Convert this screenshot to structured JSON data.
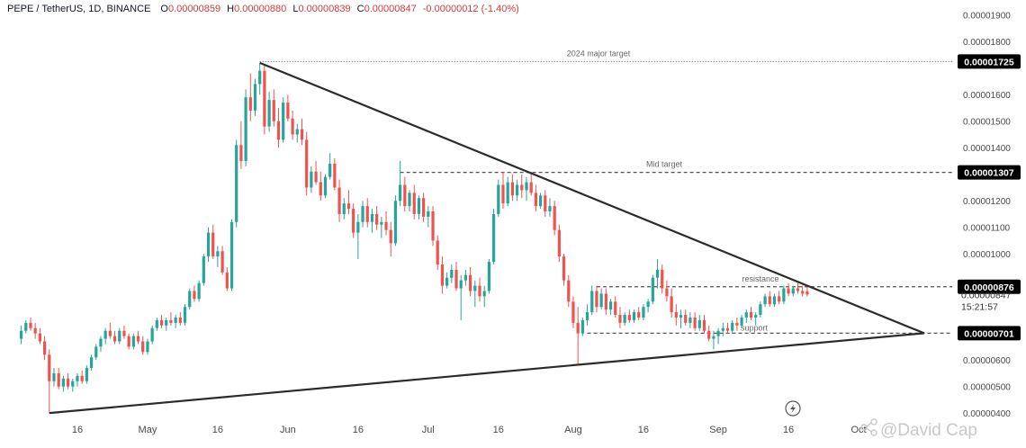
{
  "header": {
    "symbol": "PEPE / TetherUS, 1D, BINANCE",
    "open_label": "O",
    "open": "0.00000859",
    "high_label": "H",
    "high": "0.00000880",
    "low_label": "L",
    "low": "0.00000839",
    "close_label": "C",
    "close": "0.00000847",
    "change": "-0.00000012 (-1.40%)"
  },
  "watermark": "@David Cap",
  "watermark_icon": "social-share-icon",
  "indicator_icon": "lightning-bolt-icon",
  "colors": {
    "up": "#26a69a",
    "down": "#ef5350",
    "line": "#2b2b2b",
    "dashed": "#555555",
    "tag_bg": "#000000"
  },
  "chart_data": {
    "type": "candlestick",
    "title": "PEPE / TetherUS, 1D, BINANCE",
    "ylim": [
      3.7e-06,
      1.95e-05
    ],
    "xlim_index": [
      -3,
      199
    ],
    "y_ticks": [
      {
        "value": 4e-06,
        "label": "0.00000400"
      },
      {
        "value": 5e-06,
        "label": "0.00000500"
      },
      {
        "value": 6e-06,
        "label": "0.00000600"
      },
      {
        "value": 1e-05,
        "label": "0.00001000"
      },
      {
        "value": 1.1e-05,
        "label": "0.00001100"
      },
      {
        "value": 1.2e-05,
        "label": "0.00001200"
      },
      {
        "value": 1.4e-05,
        "label": "0.00001400"
      },
      {
        "value": 1.5e-05,
        "label": "0.00001500"
      },
      {
        "value": 1.6e-05,
        "label": "0.00001600"
      },
      {
        "value": 1.8e-05,
        "label": "0.00001800"
      },
      {
        "value": 1.9e-05,
        "label": "0.00001900"
      }
    ],
    "x_ticks": [
      {
        "index": 12,
        "label": "16"
      },
      {
        "index": 27,
        "label": "May"
      },
      {
        "index": 42,
        "label": "16"
      },
      {
        "index": 57,
        "label": "Jun"
      },
      {
        "index": 72,
        "label": "16"
      },
      {
        "index": 87,
        "label": "Jul"
      },
      {
        "index": 102,
        "label": "16"
      },
      {
        "index": 118,
        "label": "Aug"
      },
      {
        "index": 133,
        "label": "16"
      },
      {
        "index": 149,
        "label": "Sep"
      },
      {
        "index": 164,
        "label": "16"
      },
      {
        "index": 179,
        "label": "Oct"
      }
    ],
    "price_tags": [
      {
        "value": 1.725e-05,
        "label": "0.00001725"
      },
      {
        "value": 1.307e-05,
        "label": "0.00001307"
      },
      {
        "value": 8.76e-06,
        "label": "0.00000876"
      },
      {
        "value": 7.01e-06,
        "label": "0.00000701"
      }
    ],
    "current_price": {
      "value": 8.47e-06,
      "label": "0.00000847",
      "countdown": "15:21:57"
    },
    "horizontal_levels": [
      {
        "value": 1.725e-05,
        "from_index": 51,
        "to_index": 199,
        "style": "dotted",
        "label": "2024 major target"
      },
      {
        "value": 1.307e-05,
        "from_index": 81,
        "to_index": 199,
        "style": "dashed",
        "label": "Mid target"
      },
      {
        "value": 8.76e-06,
        "from_index": 123,
        "to_index": 199,
        "style": "dashed",
        "label": "resistance"
      },
      {
        "value": 7.01e-06,
        "from_index": 121,
        "to_index": 199,
        "style": "dashed",
        "label": "support"
      }
    ],
    "trendlines": [
      {
        "from": [
          51,
          1.72e-05
        ],
        "to": [
          193,
          7.01e-06
        ]
      },
      {
        "from": [
          6,
          4e-06
        ],
        "to": [
          193,
          7.01e-06
        ]
      }
    ],
    "ohlc": [
      [
        6.8e-06,
        7.3e-06,
        6.6e-06,
        7.1e-06
      ],
      [
        7.1e-06,
        7.5e-06,
        7e-06,
        7.4e-06
      ],
      [
        7.4e-06,
        7.6e-06,
        7.1e-06,
        7.2e-06
      ],
      [
        7.2e-06,
        7.4e-06,
        6.8e-06,
        7e-06
      ],
      [
        7e-06,
        7.2e-06,
        6.6e-06,
        6.7e-06
      ],
      [
        6.7e-06,
        6.9e-06,
        6e-06,
        6.2e-06
      ],
      [
        6.2e-06,
        6.4e-06,
        4e-06,
        5.2e-06
      ],
      [
        5.2e-06,
        5.7e-06,
        5e-06,
        5.5e-06
      ],
      [
        5.5e-06,
        5.7e-06,
        4.9e-06,
        5e-06
      ],
      [
        5e-06,
        5.4e-06,
        4.8e-06,
        5.3e-06
      ],
      [
        5.3e-06,
        5.5e-06,
        4.9e-06,
        5e-06
      ],
      [
        5e-06,
        5.3e-06,
        4.8e-06,
        5.2e-06
      ],
      [
        5.2e-06,
        5.5e-06,
        5e-06,
        5.4e-06
      ],
      [
        5.4e-06,
        5.6e-06,
        5.1e-06,
        5.2e-06
      ],
      [
        5.2e-06,
        5.8e-06,
        5.1e-06,
        5.7e-06
      ],
      [
        5.7e-06,
        6.2e-06,
        5.6e-06,
        6.1e-06
      ],
      [
        6.1e-06,
        6.6e-06,
        6e-06,
        6.5e-06
      ],
      [
        6.5e-06,
        6.9e-06,
        6.3e-06,
        6.8e-06
      ],
      [
        6.8e-06,
        7.2e-06,
        6.6e-06,
        7.1e-06
      ],
      [
        7.1e-06,
        7.4e-06,
        6.8e-06,
        6.9e-06
      ],
      [
        6.9e-06,
        7.1e-06,
        6.6e-06,
        6.7e-06
      ],
      [
        6.7e-06,
        7.2e-06,
        6.6e-06,
        7.1e-06
      ],
      [
        7.1e-06,
        7.3e-06,
        6.8e-06,
        6.9e-06
      ],
      [
        6.9e-06,
        7e-06,
        6.4e-06,
        6.5e-06
      ],
      [
        6.5e-06,
        7e-06,
        6.4e-06,
        6.9e-06
      ],
      [
        6.9e-06,
        7.1e-06,
        6.6e-06,
        6.7e-06
      ],
      [
        6.7e-06,
        6.9e-06,
        6.2e-06,
        6.3e-06
      ],
      [
        6.3e-06,
        6.8e-06,
        6.2e-06,
        6.7e-06
      ],
      [
        6.7e-06,
        7.3e-06,
        6.6e-06,
        7.2e-06
      ],
      [
        7.2e-06,
        7.6e-06,
        7.1e-06,
        7.5e-06
      ],
      [
        7.5e-06,
        7.7e-06,
        7.2e-06,
        7.3e-06
      ],
      [
        7.3e-06,
        7.6e-06,
        7.1e-06,
        7.5e-06
      ],
      [
        7.5e-06,
        7.8e-06,
        7.3e-06,
        7.4e-06
      ],
      [
        7.4e-06,
        7.7e-06,
        7.2e-06,
        7.6e-06
      ],
      [
        7.6e-06,
        7.8e-06,
        7.3e-06,
        7.4e-06
      ],
      [
        7.4e-06,
        8.1e-06,
        7.3e-06,
        8e-06
      ],
      [
        8e-06,
        8.7e-06,
        7.9e-06,
        8.6e-06
      ],
      [
        8.6e-06,
        8.8e-06,
        8.2e-06,
        8.3e-06
      ],
      [
        8.3e-06,
        9e-06,
        8.2e-06,
        8.9e-06
      ],
      [
        8.9e-06,
        1e-05,
        8.8e-06,
        9.9e-06
      ],
      [
        9.9e-06,
        1.1e-05,
        9.7e-06,
        1.08e-05
      ],
      [
        1.08e-05,
        1.11e-05,
        9.8e-06,
        9.9e-06
      ],
      [
        9.9e-06,
        1.03e-05,
        9.5e-06,
        1.01e-05
      ],
      [
        1.01e-05,
        1.03e-05,
        9.2e-06,
        9.3e-06
      ],
      [
        9.3e-06,
        9.5e-06,
        8.6e-06,
        8.7e-06
      ],
      [
        8.7e-06,
        1.13e-05,
        8.6e-06,
        1.12e-05
      ],
      [
        1.12e-05,
        1.43e-05,
        1.1e-05,
        1.41e-05
      ],
      [
        1.41e-05,
        1.5e-05,
        1.32e-05,
        1.35e-05
      ],
      [
        1.35e-05,
        1.62e-05,
        1.33e-05,
        1.59e-05
      ],
      [
        1.59e-05,
        1.68e-05,
        1.5e-05,
        1.54e-05
      ],
      [
        1.54e-05,
        1.66e-05,
        1.52e-05,
        1.64e-05
      ],
      [
        1.64e-05,
        1.72e-05,
        1.6e-05,
        1.69e-05
      ],
      [
        1.69e-05,
        1.71e-05,
        1.45e-05,
        1.48e-05
      ],
      [
        1.48e-05,
        1.61e-05,
        1.46e-05,
        1.58e-05
      ],
      [
        1.58e-05,
        1.62e-05,
        1.48e-05,
        1.5e-05
      ],
      [
        1.5e-05,
        1.55e-05,
        1.4e-05,
        1.43e-05
      ],
      [
        1.43e-05,
        1.59e-05,
        1.42e-05,
        1.57e-05
      ],
      [
        1.57e-05,
        1.6e-05,
        1.5e-05,
        1.51e-05
      ],
      [
        1.51e-05,
        1.54e-05,
        1.43e-05,
        1.45e-05
      ],
      [
        1.45e-05,
        1.49e-05,
        1.42e-05,
        1.47e-05
      ],
      [
        1.47e-05,
        1.51e-05,
        1.41e-05,
        1.43e-05
      ],
      [
        1.43e-05,
        1.46e-05,
        1.22e-05,
        1.25e-05
      ],
      [
        1.25e-05,
        1.33e-05,
        1.23e-05,
        1.31e-05
      ],
      [
        1.31e-05,
        1.35e-05,
        1.26e-05,
        1.27e-05
      ],
      [
        1.27e-05,
        1.31e-05,
        1.2e-05,
        1.22e-05
      ],
      [
        1.22e-05,
        1.3e-05,
        1.21e-05,
        1.29e-05
      ],
      [
        1.29e-05,
        1.38e-05,
        1.28e-05,
        1.34e-05
      ],
      [
        1.34e-05,
        1.36e-05,
        1.24e-05,
        1.25e-05
      ],
      [
        1.25e-05,
        1.28e-05,
        1.12e-05,
        1.15e-05
      ],
      [
        1.15e-05,
        1.21e-05,
        1.13e-05,
        1.19e-05
      ],
      [
        1.19e-05,
        1.24e-05,
        1.15e-05,
        1.17e-05
      ],
      [
        1.17e-05,
        1.19e-05,
        1.06e-05,
        1.08e-05
      ],
      [
        1.08e-05,
        1.15e-05,
        9.8e-06,
        1.12e-05
      ],
      [
        1.12e-05,
        1.2e-05,
        1.1e-05,
        1.18e-05
      ],
      [
        1.18e-05,
        1.21e-05,
        1.1e-05,
        1.12e-05
      ],
      [
        1.12e-05,
        1.17e-05,
        1.08e-05,
        1.15e-05
      ],
      [
        1.15e-05,
        1.18e-05,
        1.09e-05,
        1.11e-05
      ],
      [
        1.11e-05,
        1.14e-05,
        1.06e-05,
        1.12e-05
      ],
      [
        1.12e-05,
        1.16e-05,
        1.07e-05,
        1.09e-05
      ],
      [
        1.09e-05,
        1.12e-05,
        9.9e-06,
        1.04e-05
      ],
      [
        1.04e-05,
        1.22e-05,
        1.03e-05,
        1.2e-05
      ],
      [
        1.2e-05,
        1.35e-05,
        1.18e-05,
        1.26e-05
      ],
      [
        1.26e-05,
        1.29e-05,
        1.16e-05,
        1.18e-05
      ],
      [
        1.18e-05,
        1.24e-05,
        1.16e-05,
        1.23e-05
      ],
      [
        1.23e-05,
        1.26e-05,
        1.13e-05,
        1.15e-05
      ],
      [
        1.15e-05,
        1.22e-05,
        1.13e-05,
        1.21e-05
      ],
      [
        1.21e-05,
        1.23e-05,
        1.12e-05,
        1.14e-05
      ],
      [
        1.14e-05,
        1.18e-05,
        1.1e-05,
        1.16e-05
      ],
      [
        1.16e-05,
        1.18e-05,
        1.03e-05,
        1.05e-05
      ],
      [
        1.05e-05,
        1.07e-05,
        9.4e-06,
        9.6e-06
      ],
      [
        9.6e-06,
        9.9e-06,
        8.5e-06,
        8.8e-06
      ],
      [
        8.8e-06,
        9.3e-06,
        8.7e-06,
        9.1e-06
      ],
      [
        9.1e-06,
        9.6e-06,
        8.9e-06,
        9.4e-06
      ],
      [
        9.4e-06,
        9.7e-06,
        8.6e-06,
        8.7e-06
      ],
      [
        8.7e-06,
        9.2e-06,
        7.5e-06,
        9e-06
      ],
      [
        9e-06,
        9.4e-06,
        8.8e-06,
        9.2e-06
      ],
      [
        9.2e-06,
        9.5e-06,
        8.4e-06,
        8.6e-06
      ],
      [
        8.6e-06,
        9e-06,
        8e-06,
        8.8e-06
      ],
      [
        8.8e-06,
        9.1e-06,
        8.2e-06,
        8.4e-06
      ],
      [
        8.4e-06,
        8.8e-06,
        8e-06,
        8.6e-06
      ],
      [
        8.6e-06,
        9.8e-06,
        8.5e-06,
        9.7e-06
      ],
      [
        9.7e-06,
        1.17e-05,
        9.6e-06,
        1.15e-05
      ],
      [
        1.15e-05,
        1.28e-05,
        1.14e-05,
        1.26e-05
      ],
      [
        1.26e-05,
        1.31e-05,
        1.17e-05,
        1.19e-05
      ],
      [
        1.19e-05,
        1.29e-05,
        1.18e-05,
        1.27e-05
      ],
      [
        1.27e-05,
        1.3e-05,
        1.2e-05,
        1.22e-05
      ],
      [
        1.22e-05,
        1.28e-05,
        1.2e-05,
        1.26e-05
      ],
      [
        1.26e-05,
        1.3e-05,
        1.21e-05,
        1.24e-05
      ],
      [
        1.24e-05,
        1.29e-05,
        1.2e-05,
        1.27e-05
      ],
      [
        1.27e-05,
        1.31e-05,
        1.22e-05,
        1.23e-05
      ],
      [
        1.23e-05,
        1.26e-05,
        1.16e-05,
        1.18e-05
      ],
      [
        1.18e-05,
        1.23e-05,
        1.17e-05,
        1.22e-05
      ],
      [
        1.22e-05,
        1.24e-05,
        1.14e-05,
        1.16e-05
      ],
      [
        1.16e-05,
        1.21e-05,
        1.14e-05,
        1.18e-05
      ],
      [
        1.18e-05,
        1.2e-05,
        1.07e-05,
        1.09e-05
      ],
      [
        1.09e-05,
        1.11e-05,
        9.7e-06,
        9.9e-06
      ],
      [
        9.9e-06,
        1e-05,
        8.8e-06,
        9e-06
      ],
      [
        9e-06,
        9.2e-06,
        8e-06,
        8.2e-06
      ],
      [
        8.2e-06,
        8.4e-06,
        7.2e-06,
        7.4e-06
      ],
      [
        7.4e-06,
        8e-06,
        5.8e-06,
        7e-06
      ],
      [
        7e-06,
        7.6e-06,
        6.9e-06,
        7.5e-06
      ],
      [
        7.5e-06,
        8.1e-06,
        7.3e-06,
        7.8e-06
      ],
      [
        7.8e-06,
        8.8e-06,
        7.7e-06,
        8.6e-06
      ],
      [
        8.6e-06,
        8.8e-06,
        7.8e-06,
        8e-06
      ],
      [
        8e-06,
        8.7e-06,
        7.9e-06,
        8.5e-06
      ],
      [
        8.5e-06,
        8.7e-06,
        7.7e-06,
        7.9e-06
      ],
      [
        7.9e-06,
        8.3e-06,
        7.7e-06,
        8.2e-06
      ],
      [
        8.2e-06,
        8.4e-06,
        7.6e-06,
        7.7e-06
      ],
      [
        7.7e-06,
        8e-06,
        7.2e-06,
        7.4e-06
      ],
      [
        7.4e-06,
        7.8e-06,
        7.3e-06,
        7.7e-06
      ],
      [
        7.7e-06,
        7.9e-06,
        7.4e-06,
        7.5e-06
      ],
      [
        7.5e-06,
        7.9e-06,
        7.4e-06,
        7.8e-06
      ],
      [
        7.8e-06,
        8e-06,
        7.5e-06,
        7.6e-06
      ],
      [
        7.6e-06,
        8.1e-06,
        7.5e-06,
        8e-06
      ],
      [
        8e-06,
        8.3e-06,
        7.8e-06,
        8.2e-06
      ],
      [
        8.2e-06,
        9.2e-06,
        8.1e-06,
        9.1e-06
      ],
      [
        9.1e-06,
        9.8e-06,
        8.7e-06,
        9.4e-06
      ],
      [
        9.4e-06,
        9.6e-06,
        8.5e-06,
        8.7e-06
      ],
      [
        8.7e-06,
        9e-06,
        8.2e-06,
        8.4e-06
      ],
      [
        8.4e-06,
        8.7e-06,
        7.6e-06,
        7.8e-06
      ],
      [
        7.8e-06,
        8.1e-06,
        7.3e-06,
        7.6e-06
      ],
      [
        7.6e-06,
        7.9e-06,
        7.2e-06,
        7.7e-06
      ],
      [
        7.7e-06,
        7.9e-06,
        7.3e-06,
        7.4e-06
      ],
      [
        7.4e-06,
        7.8e-06,
        7.2e-06,
        7.6e-06
      ],
      [
        7.6e-06,
        7.8e-06,
        7.1e-06,
        7.2e-06
      ],
      [
        7.2e-06,
        7.7e-06,
        7.1e-06,
        7.5e-06
      ],
      [
        7.5e-06,
        7.7e-06,
        7e-06,
        7.1e-06
      ],
      [
        7.1e-06,
        7.3e-06,
        6.7e-06,
        6.8e-06
      ],
      [
        6.8e-06,
        7.1e-06,
        6.4e-06,
        6.9e-06
      ],
      [
        6.9e-06,
        7.2e-06,
        6.6e-06,
        7.1e-06
      ],
      [
        7.1e-06,
        7.4e-06,
        6.9e-06,
        7.2e-06
      ],
      [
        7.2e-06,
        7.4e-06,
        7e-06,
        7.1e-06
      ],
      [
        7.1e-06,
        7.5e-06,
        7e-06,
        7.4e-06
      ],
      [
        7.4e-06,
        7.6e-06,
        7.1e-06,
        7.3e-06
      ],
      [
        7.3e-06,
        7.7e-06,
        7.2e-06,
        7.6e-06
      ],
      [
        7.6e-06,
        7.9e-06,
        7.4e-06,
        7.8e-06
      ],
      [
        7.8e-06,
        8e-06,
        7.5e-06,
        7.6e-06
      ],
      [
        7.6e-06,
        7.8e-06,
        7.3e-06,
        7.7e-06
      ],
      [
        7.7e-06,
        8.2e-06,
        7.6e-06,
        8.1e-06
      ],
      [
        8.1e-06,
        8.5e-06,
        8e-06,
        8.4e-06
      ],
      [
        8.4e-06,
        8.6e-06,
        8e-06,
        8.1e-06
      ],
      [
        8.1e-06,
        8.5e-06,
        8e-06,
        8.4e-06
      ],
      [
        8.4e-06,
        8.6e-06,
        8.1e-06,
        8.2e-06
      ],
      [
        8.2e-06,
        8.8e-06,
        8.1e-06,
        8.7e-06
      ],
      [
        8.7e-06,
        8.9e-06,
        8.4e-06,
        8.5e-06
      ],
      [
        8.5e-06,
        8.8e-06,
        8.4e-06,
        8.7e-06
      ],
      [
        8.7e-06,
        8.9e-06,
        8.5e-06,
        8.6e-06
      ],
      [
        8.6e-06,
        8.8e-06,
        8.4e-06,
        8.5e-06
      ],
      [
        8.59e-06,
        8.8e-06,
        8.39e-06,
        8.47e-06
      ]
    ]
  }
}
